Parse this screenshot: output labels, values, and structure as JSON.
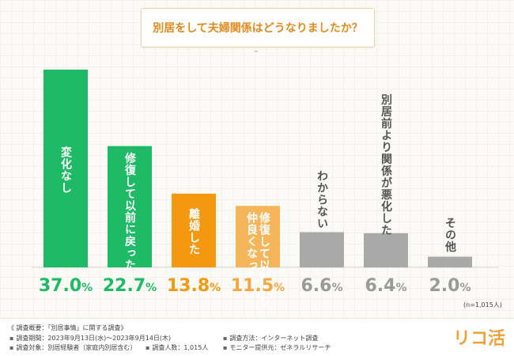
{
  "title": "別居をして夫婦関係はどうなりましたか？",
  "sample_size": "(n=1,015人)",
  "chart_data": {
    "type": "bar",
    "categories": [
      "変化なし",
      "修復して以前に戻った",
      "離婚した",
      "修復して以前より仲良くなった",
      "わからない",
      "別居前より関係が悪化した",
      "その他"
    ],
    "category_lines": [
      [
        "変化なし"
      ],
      [
        "修復して以前に戻った"
      ],
      [
        "離婚した"
      ],
      [
        "修復して以前より",
        "仲良くなった"
      ],
      [
        "わからない"
      ],
      [
        "別居前より関係が悪化した"
      ],
      [
        "その他"
      ]
    ],
    "values": [
      37.0,
      22.7,
      13.8,
      11.5,
      6.6,
      6.4,
      2.0
    ],
    "value_labels": [
      "37.0%",
      "22.7%",
      "13.8%",
      "11.5%",
      "6.6%",
      "6.4%",
      "2.0%"
    ],
    "colors": [
      "#1fba66",
      "#1fba66",
      "#f4980f",
      "#f5b55a",
      "#a9a9a9",
      "#a9a9a9",
      "#a9a9a9"
    ],
    "value_colors": [
      "#1fba66",
      "#1fba66",
      "#f4980f",
      "#f5a63e",
      "#9a9a9a",
      "#9a9a9a",
      "#9a9a9a"
    ],
    "ylim": [
      0,
      37.0
    ],
    "grid": false,
    "legend": "none"
  },
  "footer": {
    "heading": "《 調査概要：「別居事情」に関する調査》",
    "period": "調査期間：2023年9月13日(水)～2023年9月14日(木)",
    "method": "調査方法：インターネット調査",
    "target": "調査対象：別居経験者（家庭内別居含む）",
    "count": "調査人数：1,015人",
    "provider": "モニター提供元：ゼネラルリサーチ"
  },
  "logo": "リコ活"
}
